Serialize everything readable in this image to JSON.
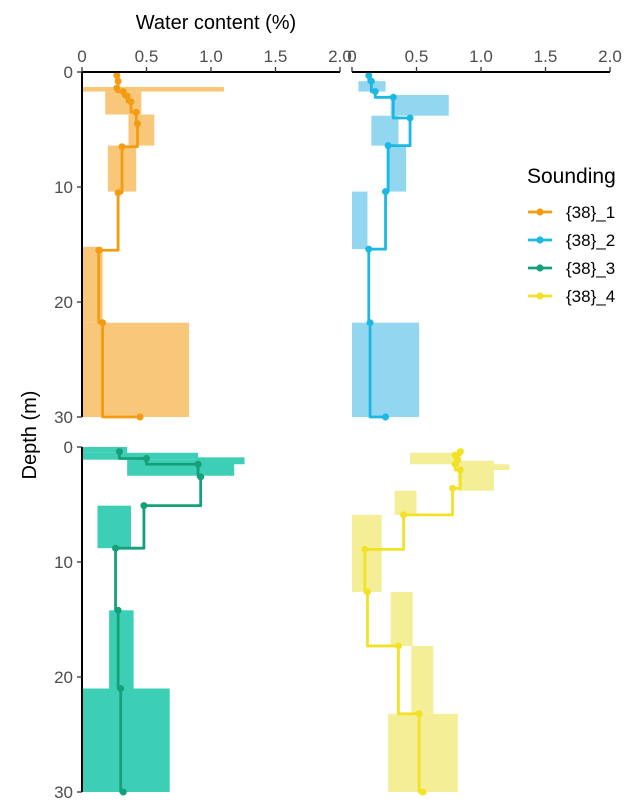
{
  "chart_data": {
    "type": "line",
    "xlabel": "Water content (%)",
    "ylabel": "Depth (m)",
    "xlim": [
      0,
      2.0
    ],
    "ylim": [
      30,
      0
    ],
    "x_ticks": [
      "0",
      "0.5",
      "1.0",
      "1.5",
      "2.0"
    ],
    "y_ticks": [
      "0",
      "10",
      "20",
      "30"
    ],
    "grid": false,
    "legend": {
      "title": "Sounding",
      "position": "right"
    },
    "series": [
      {
        "name": "{38}_1",
        "color": "#F39C12",
        "band_color": "#F9C77A",
        "points": [
          {
            "depth": 0.3,
            "value": 0.27
          },
          {
            "depth": 0.8,
            "value": 0.28
          },
          {
            "depth": 1.4,
            "value": 0.27
          },
          {
            "depth": 1.7,
            "value": 0.32
          },
          {
            "depth": 2.1,
            "value": 0.35
          },
          {
            "depth": 2.6,
            "value": 0.38
          },
          {
            "depth": 3.5,
            "value": 0.42
          },
          {
            "depth": 4.5,
            "value": 0.43
          },
          {
            "depth": 6.5,
            "value": 0.31
          },
          {
            "depth": 10.5,
            "value": 0.28
          },
          {
            "depth": 15.5,
            "value": 0.13
          },
          {
            "depth": 21.8,
            "value": 0.16
          },
          {
            "depth": 30.0,
            "value": 0.45
          }
        ],
        "bands": [
          {
            "top": 1.3,
            "bottom": 1.7,
            "min": 0.0,
            "max": 1.1
          },
          {
            "top": 1.7,
            "bottom": 3.7,
            "min": 0.18,
            "max": 0.46
          },
          {
            "top": 3.7,
            "bottom": 6.4,
            "min": 0.36,
            "max": 0.56
          },
          {
            "top": 6.4,
            "bottom": 10.4,
            "min": 0.2,
            "max": 0.42
          },
          {
            "top": 15.2,
            "bottom": 21.8,
            "min": 0.0,
            "max": 0.16
          },
          {
            "top": 21.8,
            "bottom": 30.0,
            "min": 0.0,
            "max": 0.83
          }
        ]
      },
      {
        "name": "{38}_2",
        "color": "#1CB8E4",
        "band_color": "#93D6F0",
        "points": [
          {
            "depth": 0.3,
            "value": 0.13
          },
          {
            "depth": 0.8,
            "value": 0.15
          },
          {
            "depth": 1.7,
            "value": 0.18
          },
          {
            "depth": 2.2,
            "value": 0.32
          },
          {
            "depth": 4.0,
            "value": 0.45
          },
          {
            "depth": 6.4,
            "value": 0.28
          },
          {
            "depth": 10.4,
            "value": 0.26
          },
          {
            "depth": 15.4,
            "value": 0.13
          },
          {
            "depth": 21.8,
            "value": 0.14
          },
          {
            "depth": 30.0,
            "value": 0.26
          }
        ],
        "bands": [
          {
            "top": 0.8,
            "bottom": 1.7,
            "min": 0.05,
            "max": 0.26
          },
          {
            "top": 2.0,
            "bottom": 3.8,
            "min": 0.3,
            "max": 0.75
          },
          {
            "top": 3.8,
            "bottom": 6.4,
            "min": 0.15,
            "max": 0.36
          },
          {
            "top": 6.4,
            "bottom": 10.4,
            "min": 0.27,
            "max": 0.42
          },
          {
            "top": 10.4,
            "bottom": 15.4,
            "min": 0.0,
            "max": 0.12
          },
          {
            "top": 21.8,
            "bottom": 30.0,
            "min": 0.0,
            "max": 0.52
          }
        ]
      },
      {
        "name": "{38}_3",
        "color": "#16A07A",
        "band_color": "#3DCFB5",
        "points": [
          {
            "depth": 0.4,
            "value": 0.29
          },
          {
            "depth": 1.0,
            "value": 0.5
          },
          {
            "depth": 1.5,
            "value": 0.9
          },
          {
            "depth": 2.6,
            "value": 0.92
          },
          {
            "depth": 5.1,
            "value": 0.48
          },
          {
            "depth": 8.8,
            "value": 0.26
          },
          {
            "depth": 14.2,
            "value": 0.28
          },
          {
            "depth": 21.0,
            "value": 0.3
          },
          {
            "depth": 30.0,
            "value": 0.32
          }
        ],
        "bands": [
          {
            "top": 0.0,
            "bottom": 0.5,
            "min": 0.0,
            "max": 0.35
          },
          {
            "top": 0.5,
            "bottom": 1.1,
            "min": 0.0,
            "max": 0.9
          },
          {
            "top": 1.1,
            "bottom": 2.5,
            "min": 0.35,
            "max": 1.18
          },
          {
            "top": 0.9,
            "bottom": 1.5,
            "min": 0.88,
            "max": 1.26
          },
          {
            "top": 2.5,
            "bottom": 5.1,
            "min": 0.0,
            "max": 0.0
          },
          {
            "top": 5.1,
            "bottom": 8.8,
            "min": 0.12,
            "max": 0.38
          },
          {
            "top": 14.2,
            "bottom": 21.0,
            "min": 0.21,
            "max": 0.4
          },
          {
            "top": 21.0,
            "bottom": 30.0,
            "min": 0.0,
            "max": 0.68
          }
        ]
      },
      {
        "name": "{38}_4",
        "color": "#F2E227",
        "band_color": "#F4EE96",
        "points": [
          {
            "depth": 0.4,
            "value": 0.84
          },
          {
            "depth": 0.7,
            "value": 0.8
          },
          {
            "depth": 1.1,
            "value": 0.82
          },
          {
            "depth": 1.5,
            "value": 0.8
          },
          {
            "depth": 2.0,
            "value": 0.84
          },
          {
            "depth": 3.6,
            "value": 0.78
          },
          {
            "depth": 5.9,
            "value": 0.4
          },
          {
            "depth": 8.9,
            "value": 0.1
          },
          {
            "depth": 12.6,
            "value": 0.12
          },
          {
            "depth": 17.3,
            "value": 0.36
          },
          {
            "depth": 23.2,
            "value": 0.52
          },
          {
            "depth": 30.0,
            "value": 0.55
          }
        ],
        "bands": [
          {
            "top": 0.5,
            "bottom": 1.5,
            "min": 0.45,
            "max": 0.84
          },
          {
            "top": 1.5,
            "bottom": 2.0,
            "min": 0.8,
            "max": 1.22
          },
          {
            "top": 1.2,
            "bottom": 3.8,
            "min": 0.82,
            "max": 1.1
          },
          {
            "top": 3.8,
            "bottom": 5.9,
            "min": 0.33,
            "max": 0.5
          },
          {
            "top": 5.9,
            "bottom": 12.6,
            "min": 0.0,
            "max": 0.23
          },
          {
            "top": 12.6,
            "bottom": 17.3,
            "min": 0.3,
            "max": 0.47
          },
          {
            "top": 17.3,
            "bottom": 23.2,
            "min": 0.46,
            "max": 0.63
          },
          {
            "top": 23.2,
            "bottom": 30.0,
            "min": 0.28,
            "max": 0.82
          }
        ]
      }
    ]
  }
}
